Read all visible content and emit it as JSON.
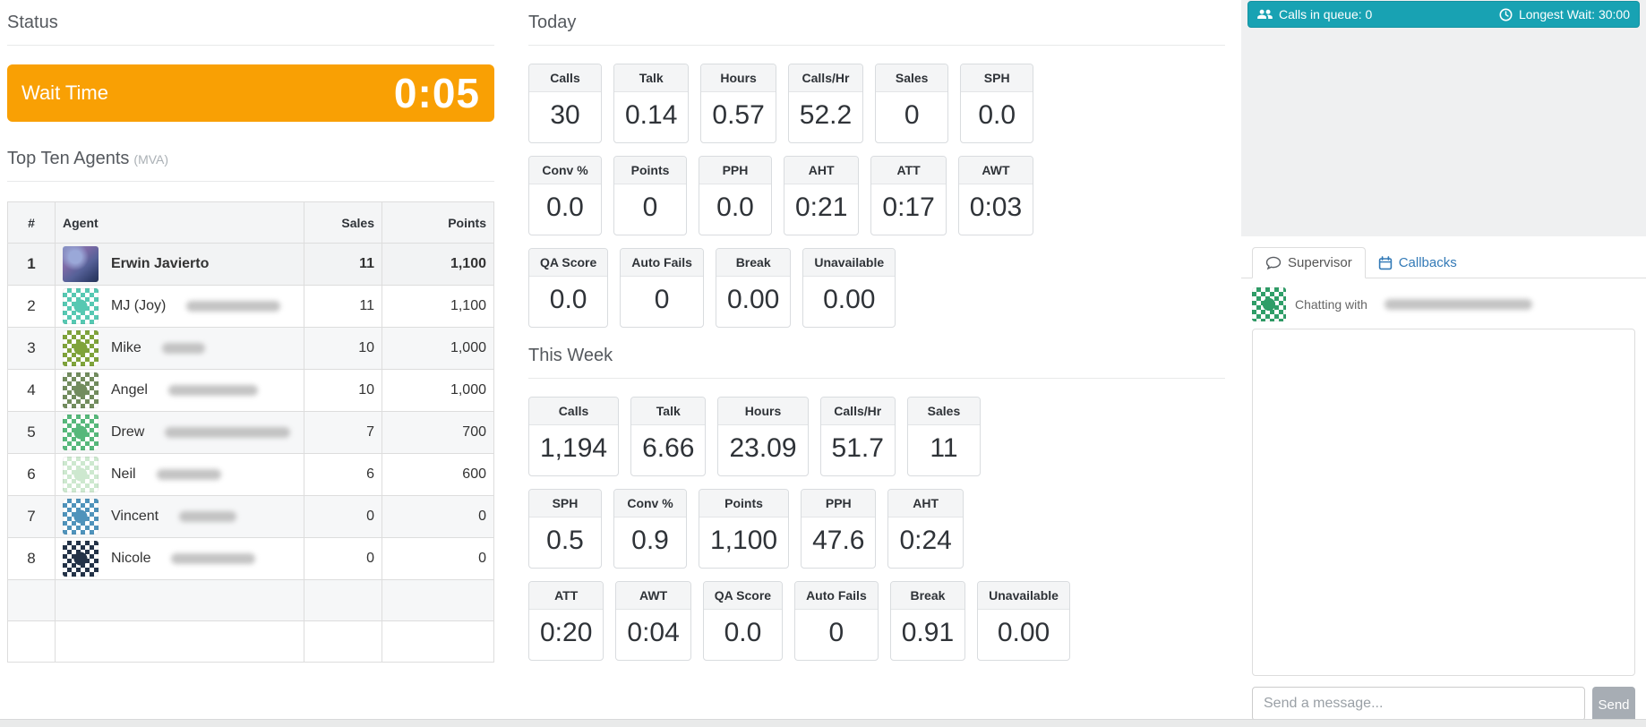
{
  "status": {
    "heading": "Status",
    "wait_time_label": "Wait Time",
    "wait_time_value": "0:05"
  },
  "top_agents": {
    "heading": "Top Ten Agents",
    "heading_suffix": "(MVA)",
    "columns": [
      "#",
      "Agent",
      "Sales",
      "Points"
    ],
    "rows": [
      {
        "rank": "1",
        "name": "Erwin Javierto",
        "name_blur_width": 0,
        "sales": "11",
        "points": "1,100",
        "highlight": true,
        "avatar": {
          "kind": "photo"
        }
      },
      {
        "rank": "2",
        "name": "MJ (Joy)",
        "name_blur_width": 105,
        "sales": "11",
        "points": "1,100",
        "highlight": false,
        "avatar": {
          "kind": "pattern",
          "color": "#56c8b2"
        }
      },
      {
        "rank": "3",
        "name": "Mike",
        "name_blur_width": 48,
        "sales": "10",
        "points": "1,000",
        "highlight": false,
        "avatar": {
          "kind": "pattern",
          "color": "#7fa33b"
        }
      },
      {
        "rank": "4",
        "name": "Angel",
        "name_blur_width": 100,
        "sales": "10",
        "points": "1,000",
        "highlight": false,
        "avatar": {
          "kind": "pattern",
          "color": "#728c5e"
        }
      },
      {
        "rank": "5",
        "name": "Drew",
        "name_blur_width": 140,
        "sales": "7",
        "points": "700",
        "highlight": false,
        "avatar": {
          "kind": "pattern",
          "color": "#57b87b"
        }
      },
      {
        "rank": "6",
        "name": "Neil",
        "name_blur_width": 72,
        "sales": "6",
        "points": "600",
        "highlight": false,
        "avatar": {
          "kind": "pattern",
          "color": "#cde8cf"
        }
      },
      {
        "rank": "7",
        "name": "Vincent",
        "name_blur_width": 64,
        "sales": "0",
        "points": "0",
        "highlight": false,
        "avatar": {
          "kind": "pattern",
          "color": "#4f93bb"
        }
      },
      {
        "rank": "8",
        "name": "Nicole",
        "name_blur_width": 94,
        "sales": "0",
        "points": "0",
        "highlight": false,
        "avatar": {
          "kind": "pattern",
          "color": "#233247"
        }
      }
    ],
    "empty_rows": 2
  },
  "today": {
    "heading": "Today",
    "card_rows": [
      [
        {
          "label": "Calls",
          "value": "30"
        },
        {
          "label": "Talk",
          "value": "0.14"
        },
        {
          "label": "Hours",
          "value": "0.57"
        },
        {
          "label": "Calls/Hr",
          "value": "52.2"
        },
        {
          "label": "Sales",
          "value": "0"
        },
        {
          "label": "SPH",
          "value": "0.0"
        }
      ],
      [
        {
          "label": "Conv %",
          "value": "0.0"
        },
        {
          "label": "Points",
          "value": "0"
        },
        {
          "label": "PPH",
          "value": "0.0"
        },
        {
          "label": "AHT",
          "value": "0:21"
        },
        {
          "label": "ATT",
          "value": "0:17"
        },
        {
          "label": "AWT",
          "value": "0:03"
        }
      ],
      [
        {
          "label": "QA Score",
          "value": "0.0"
        },
        {
          "label": "Auto Fails",
          "value": "0"
        },
        {
          "label": "Break",
          "value": "0.00"
        },
        {
          "label": "Unavailable",
          "value": "0.00"
        }
      ]
    ]
  },
  "this_week": {
    "heading": "This Week",
    "card_rows": [
      [
        {
          "label": "Calls",
          "value": "1,194"
        },
        {
          "label": "Talk",
          "value": "6.66"
        },
        {
          "label": "Hours",
          "value": "23.09"
        },
        {
          "label": "Calls/Hr",
          "value": "51.7"
        },
        {
          "label": "Sales",
          "value": "11"
        }
      ],
      [
        {
          "label": "SPH",
          "value": "0.5"
        },
        {
          "label": "Conv %",
          "value": "0.9"
        },
        {
          "label": "Points",
          "value": "1,100"
        },
        {
          "label": "PPH",
          "value": "47.6"
        },
        {
          "label": "AHT",
          "value": "0:24"
        }
      ],
      [
        {
          "label": "ATT",
          "value": "0:20"
        },
        {
          "label": "AWT",
          "value": "0:04"
        },
        {
          "label": "QA Score",
          "value": "0.0"
        },
        {
          "label": "Auto Fails",
          "value": "0"
        },
        {
          "label": "Break",
          "value": "0.91"
        },
        {
          "label": "Unavailable",
          "value": "0.00"
        }
      ]
    ]
  },
  "queue_bar": {
    "calls_in_queue": "Calls in queue: 0",
    "longest_wait": "Longest Wait: 30:00"
  },
  "chat": {
    "tabs": [
      {
        "label": "Supervisor",
        "active": true
      },
      {
        "label": "Callbacks",
        "active": false
      }
    ],
    "chatting_with_label": "Chatting with",
    "chatting_with_blur_width": 165,
    "avatar": {
      "kind": "pattern",
      "color": "#2f9e68"
    },
    "message_placeholder": "Send a message...",
    "send_label": "Send"
  },
  "icons": {
    "queue": "users-icon",
    "wait": "clock-icon",
    "supervisor_tab": "chat-bubble-icon",
    "callbacks_tab": "calendar-icon"
  },
  "colors": {
    "accent_orange": "#f9a004",
    "teal_bar": "#18a2b3",
    "link_blue": "#337ab7"
  }
}
